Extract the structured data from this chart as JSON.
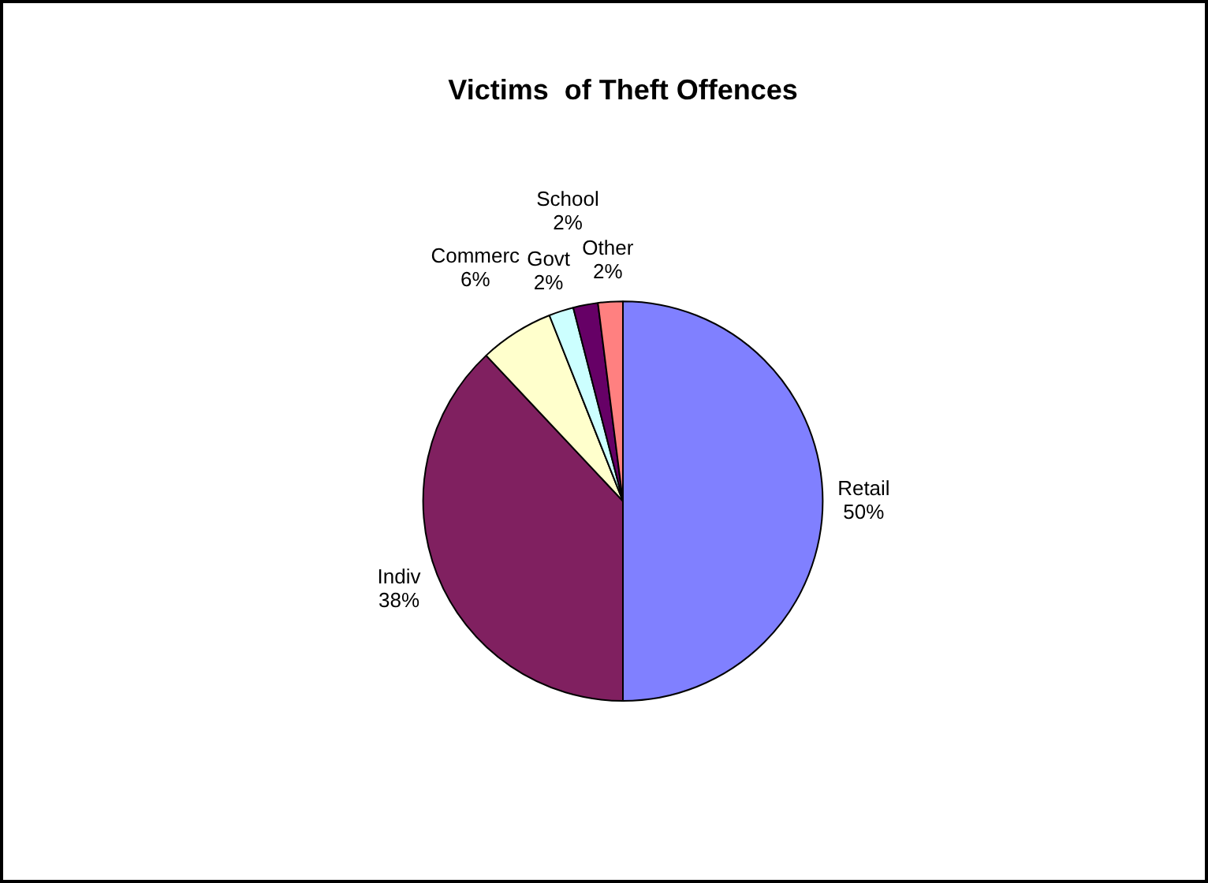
{
  "chart_data": {
    "type": "pie",
    "title": "Victims  of Theft Offences",
    "categories": [
      "Retail",
      "Indiv",
      "Commerc",
      "Govt",
      "School",
      "Other"
    ],
    "values": [
      50,
      38,
      6,
      2,
      2,
      2
    ],
    "value_labels": [
      "50%",
      "38%",
      "6%",
      "2%",
      "2%",
      "2%"
    ],
    "colors": [
      "#8080ff",
      "#802060",
      "#ffffcc",
      "#ccffff",
      "#660066",
      "#ff8080"
    ],
    "legend": false
  }
}
